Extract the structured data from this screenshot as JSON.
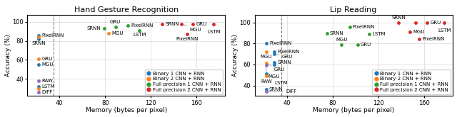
{
  "chart_data": [
    {
      "type": "scatter",
      "title": "Hand Gesture Recognition",
      "x_label": "Memory (bytes per pixel)",
      "y_label": "Accuracy (%)",
      "xlim": [
        12,
        185
      ],
      "ylim": [
        22,
        107
      ],
      "xticks": [
        40,
        80,
        120,
        160
      ],
      "yticks": [
        40,
        60,
        80,
        100
      ],
      "grid": true,
      "legend": "lower right",
      "reference_line": {
        "x": 35,
        "line_style": "dashed"
      },
      "series": [
        {
          "name": "Binary 1 CNN + RNN",
          "x": [
            22,
            22,
            22,
            22
          ],
          "values": [
            86,
            82,
            55,
            32
          ],
          "labels": [
            "PixelRNN",
            "SRNN",
            "MGU",
            "LSTM"
          ]
        },
        {
          "name": "Binary 2 CNN + RNN",
          "x": [
            22,
            22,
            22,
            83
          ],
          "values": [
            84,
            61,
            30,
            88
          ],
          "labels": [
            null,
            "GRU",
            null,
            "MGU"
          ]
        },
        {
          "name": "Full precision 1 CNN + RNN",
          "x": [
            79,
            89,
            100,
            110
          ],
          "values": [
            93,
            95,
            96,
            91
          ],
          "labels": [
            "SRNN",
            "GRU",
            "PixelRNN",
            "LSTM"
          ]
        },
        {
          "name": "Full precision 2 CNN + RNN",
          "x": [
            130,
            147,
            152,
            157,
            175
          ],
          "values": [
            98,
            98,
            87,
            98,
            98
          ],
          "labels": [
            "SRNN",
            "MGU",
            "PixelRNN",
            "GRU",
            "LSTM"
          ]
        },
        {
          "x": [
            22,
            22
          ],
          "values": [
            38,
            26
          ],
          "labels": [
            "RAW",
            "DIFF"
          ]
        }
      ]
    },
    {
      "type": "scatter",
      "title": "Lip Reading",
      "x_label": "Memory (bytes per pixel)",
      "y_label": "Accuracy (%)",
      "xlim": [
        12,
        185
      ],
      "ylim": [
        30,
        107
      ],
      "xticks": [
        40,
        80,
        120,
        160
      ],
      "yticks": [
        40,
        60,
        80,
        100
      ],
      "grid": true,
      "legend": "lower right",
      "reference_line": {
        "x": 35,
        "line_style": "dashed"
      },
      "series": [
        {
          "name": "Binary 1 CNN + RNN",
          "x": [
            22,
            29,
            29,
            29,
            29,
            22,
            22
          ],
          "values": [
            80,
            72,
            70,
            62,
            60,
            51,
            36
          ],
          "labels": [
            "PixelRNN",
            "PixelRNN",
            "GRU",
            "SRNN",
            "MGU",
            "LSTM",
            "SRNN"
          ]
        },
        {
          "name": "Binary 2 CNN + RNN",
          "x": [
            22,
            22,
            22
          ],
          "values": [
            72,
            61,
            49
          ],
          "labels": [
            "MGU",
            "GRU",
            null
          ]
        },
        {
          "name": "Full precision 1 CNN + RNN",
          "x": [
            75,
            88,
            95,
            102,
            112
          ],
          "values": [
            90,
            79,
            96,
            79,
            89
          ],
          "labels": [
            "SRNN",
            "MGU",
            "PixelRNN",
            "GRU",
            "LSTM"
          ]
        },
        {
          "name": "Full precision 2 CNN + RNN",
          "x": [
            138,
            148,
            153,
            156,
            163,
            178
          ],
          "values": [
            100,
            91,
            100,
            84,
            100,
            100
          ],
          "labels": [
            "SRNN",
            "MGU",
            null,
            "PixelRNN",
            "GRU",
            "LSTM"
          ]
        },
        {
          "x": [
            22,
            22
          ],
          "values": [
            59,
            34
          ],
          "labels": [
            "RAW",
            "DIFF"
          ]
        }
      ]
    }
  ]
}
